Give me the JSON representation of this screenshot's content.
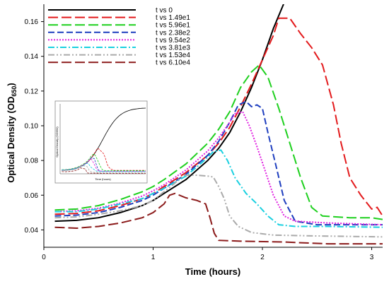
{
  "chart_data": {
    "type": "line",
    "title": "",
    "xlabel": "Time (hours)",
    "ylabel_main": "Optical Density (OD",
    "ylabel_sub": "650",
    "ylabel_close": ")",
    "xlim": [
      0,
      3.1
    ],
    "ylim": [
      0.03,
      0.17
    ],
    "xticks": [
      0,
      1,
      2,
      3
    ],
    "yticks": [
      0.04,
      0.06,
      0.08,
      0.1,
      0.12,
      0.14,
      0.16
    ],
    "ytick_labels": [
      "0.04",
      "0.06",
      "0.08",
      "0.10",
      "0.12",
      "0.14",
      "0.16"
    ],
    "grid": false,
    "legend_position": "top-left",
    "series": [
      {
        "name": "t vs 0",
        "color": "#000000",
        "dash": "solid",
        "points": [
          [
            0.1,
            0.045
          ],
          [
            0.3,
            0.0455
          ],
          [
            0.5,
            0.047
          ],
          [
            0.7,
            0.05
          ],
          [
            0.9,
            0.054
          ],
          [
            1.0,
            0.057
          ],
          [
            1.1,
            0.061
          ],
          [
            1.3,
            0.069
          ],
          [
            1.5,
            0.08
          ],
          [
            1.6,
            0.087
          ],
          [
            1.7,
            0.096
          ],
          [
            1.8,
            0.108
          ],
          [
            1.9,
            0.122
          ],
          [
            2.0,
            0.138
          ],
          [
            2.1,
            0.156
          ],
          [
            2.2,
            0.171
          ]
        ]
      },
      {
        "name": "t vs 1.49e1",
        "color": "#e31a1c",
        "dash": "long-dash",
        "points": [
          [
            0.1,
            0.049
          ],
          [
            0.3,
            0.0495
          ],
          [
            0.5,
            0.051
          ],
          [
            0.7,
            0.054
          ],
          [
            0.9,
            0.058
          ],
          [
            1.0,
            0.061
          ],
          [
            1.1,
            0.065
          ],
          [
            1.3,
            0.073
          ],
          [
            1.5,
            0.083
          ],
          [
            1.6,
            0.09
          ],
          [
            1.7,
            0.099
          ],
          [
            1.8,
            0.111
          ],
          [
            1.9,
            0.124
          ],
          [
            2.0,
            0.138
          ],
          [
            2.1,
            0.152
          ],
          [
            2.15,
            0.162
          ],
          [
            2.25,
            0.162
          ],
          [
            2.35,
            0.153
          ],
          [
            2.45,
            0.145
          ],
          [
            2.55,
            0.135
          ],
          [
            2.65,
            0.112
          ],
          [
            2.72,
            0.09
          ],
          [
            2.8,
            0.07
          ],
          [
            2.9,
            0.06
          ],
          [
            3.0,
            0.052
          ],
          [
            3.05,
            0.053
          ],
          [
            3.1,
            0.048
          ]
        ]
      },
      {
        "name": "t vs 5.96e1",
        "color": "#1fd01f",
        "dash": "long-dash",
        "points": [
          [
            0.1,
            0.0515
          ],
          [
            0.3,
            0.052
          ],
          [
            0.5,
            0.054
          ],
          [
            0.7,
            0.0575
          ],
          [
            0.9,
            0.062
          ],
          [
            1.0,
            0.065
          ],
          [
            1.1,
            0.069
          ],
          [
            1.3,
            0.078
          ],
          [
            1.5,
            0.09
          ],
          [
            1.6,
            0.098
          ],
          [
            1.7,
            0.108
          ],
          [
            1.8,
            0.122
          ],
          [
            1.9,
            0.131
          ],
          [
            1.97,
            0.135
          ],
          [
            2.05,
            0.128
          ],
          [
            2.15,
            0.11
          ],
          [
            2.25,
            0.09
          ],
          [
            2.35,
            0.07
          ],
          [
            2.45,
            0.053
          ],
          [
            2.55,
            0.048
          ],
          [
            2.8,
            0.047
          ],
          [
            3.0,
            0.047
          ],
          [
            3.1,
            0.046
          ]
        ]
      },
      {
        "name": "t vs 2.38e2",
        "color": "#1f3fbf",
        "dash": "medium-dash",
        "points": [
          [
            0.1,
            0.048
          ],
          [
            0.3,
            0.0485
          ],
          [
            0.5,
            0.05
          ],
          [
            0.7,
            0.053
          ],
          [
            0.9,
            0.057
          ],
          [
            1.0,
            0.06
          ],
          [
            1.1,
            0.064
          ],
          [
            1.3,
            0.072
          ],
          [
            1.5,
            0.083
          ],
          [
            1.6,
            0.091
          ],
          [
            1.7,
            0.102
          ],
          [
            1.78,
            0.112
          ],
          [
            1.85,
            0.114
          ],
          [
            1.9,
            0.111
          ],
          [
            1.95,
            0.112
          ],
          [
            2.0,
            0.11
          ],
          [
            2.05,
            0.096
          ],
          [
            2.12,
            0.078
          ],
          [
            2.2,
            0.057
          ],
          [
            2.3,
            0.045
          ],
          [
            2.5,
            0.043
          ],
          [
            3.0,
            0.043
          ],
          [
            3.1,
            0.043
          ]
        ]
      },
      {
        "name": "t vs 9.54e2",
        "color": "#e020e0",
        "dash": "dotted",
        "points": [
          [
            0.1,
            0.0505
          ],
          [
            0.3,
            0.051
          ],
          [
            0.5,
            0.0525
          ],
          [
            0.7,
            0.0555
          ],
          [
            0.9,
            0.0595
          ],
          [
            1.0,
            0.0625
          ],
          [
            1.1,
            0.066
          ],
          [
            1.3,
            0.0745
          ],
          [
            1.5,
            0.0855
          ],
          [
            1.6,
            0.093
          ],
          [
            1.7,
            0.102
          ],
          [
            1.75,
            0.107
          ],
          [
            1.82,
            0.108
          ],
          [
            1.88,
            0.1
          ],
          [
            1.95,
            0.088
          ],
          [
            2.02,
            0.075
          ],
          [
            2.1,
            0.06
          ],
          [
            2.2,
            0.048
          ],
          [
            2.3,
            0.045
          ],
          [
            2.6,
            0.044
          ],
          [
            3.1,
            0.043
          ]
        ]
      },
      {
        "name": "t vs 3.81e3",
        "color": "#19d0e0",
        "dash": "dash-dot",
        "points": [
          [
            0.1,
            0.0505
          ],
          [
            0.3,
            0.0505
          ],
          [
            0.5,
            0.052
          ],
          [
            0.7,
            0.055
          ],
          [
            0.9,
            0.058
          ],
          [
            1.0,
            0.061
          ],
          [
            1.1,
            0.064
          ],
          [
            1.3,
            0.071
          ],
          [
            1.45,
            0.079
          ],
          [
            1.55,
            0.085
          ],
          [
            1.62,
            0.086
          ],
          [
            1.68,
            0.08
          ],
          [
            1.75,
            0.07
          ],
          [
            1.85,
            0.061
          ],
          [
            1.95,
            0.055
          ],
          [
            2.05,
            0.048
          ],
          [
            2.15,
            0.043
          ],
          [
            2.3,
            0.042
          ],
          [
            2.6,
            0.042
          ],
          [
            3.1,
            0.0415
          ]
        ]
      },
      {
        "name": "t vs 1.53e4",
        "color": "#aaaaaa",
        "dash": "dash-dot-dot",
        "points": [
          [
            0.1,
            0.047
          ],
          [
            0.3,
            0.0475
          ],
          [
            0.5,
            0.049
          ],
          [
            0.7,
            0.051
          ],
          [
            0.9,
            0.054
          ],
          [
            1.0,
            0.057
          ],
          [
            1.1,
            0.062
          ],
          [
            1.2,
            0.067
          ],
          [
            1.28,
            0.0715
          ],
          [
            1.4,
            0.0715
          ],
          [
            1.5,
            0.071
          ],
          [
            1.55,
            0.0705
          ],
          [
            1.6,
            0.065
          ],
          [
            1.65,
            0.058
          ],
          [
            1.7,
            0.048
          ],
          [
            1.78,
            0.042
          ],
          [
            1.9,
            0.0385
          ],
          [
            2.1,
            0.037
          ],
          [
            2.5,
            0.0365
          ],
          [
            3.1,
            0.036
          ]
        ]
      },
      {
        "name": "t vs 6.10e4",
        "color": "#8b1a1a",
        "dash": "long-dash",
        "points": [
          [
            0.1,
            0.0415
          ],
          [
            0.3,
            0.041
          ],
          [
            0.5,
            0.042
          ],
          [
            0.7,
            0.044
          ],
          [
            0.9,
            0.047
          ],
          [
            1.0,
            0.05
          ],
          [
            1.1,
            0.055
          ],
          [
            1.15,
            0.06
          ],
          [
            1.2,
            0.061
          ],
          [
            1.3,
            0.0585
          ],
          [
            1.4,
            0.057
          ],
          [
            1.48,
            0.055
          ],
          [
            1.52,
            0.047
          ],
          [
            1.56,
            0.038
          ],
          [
            1.6,
            0.034
          ],
          [
            1.8,
            0.0335
          ],
          [
            2.2,
            0.033
          ],
          [
            2.6,
            0.032
          ],
          [
            3.1,
            0.032
          ]
        ]
      }
    ],
    "inset": {
      "ylabel": "Optical Density (OD650)",
      "xlabel": "Time (hours)"
    }
  }
}
